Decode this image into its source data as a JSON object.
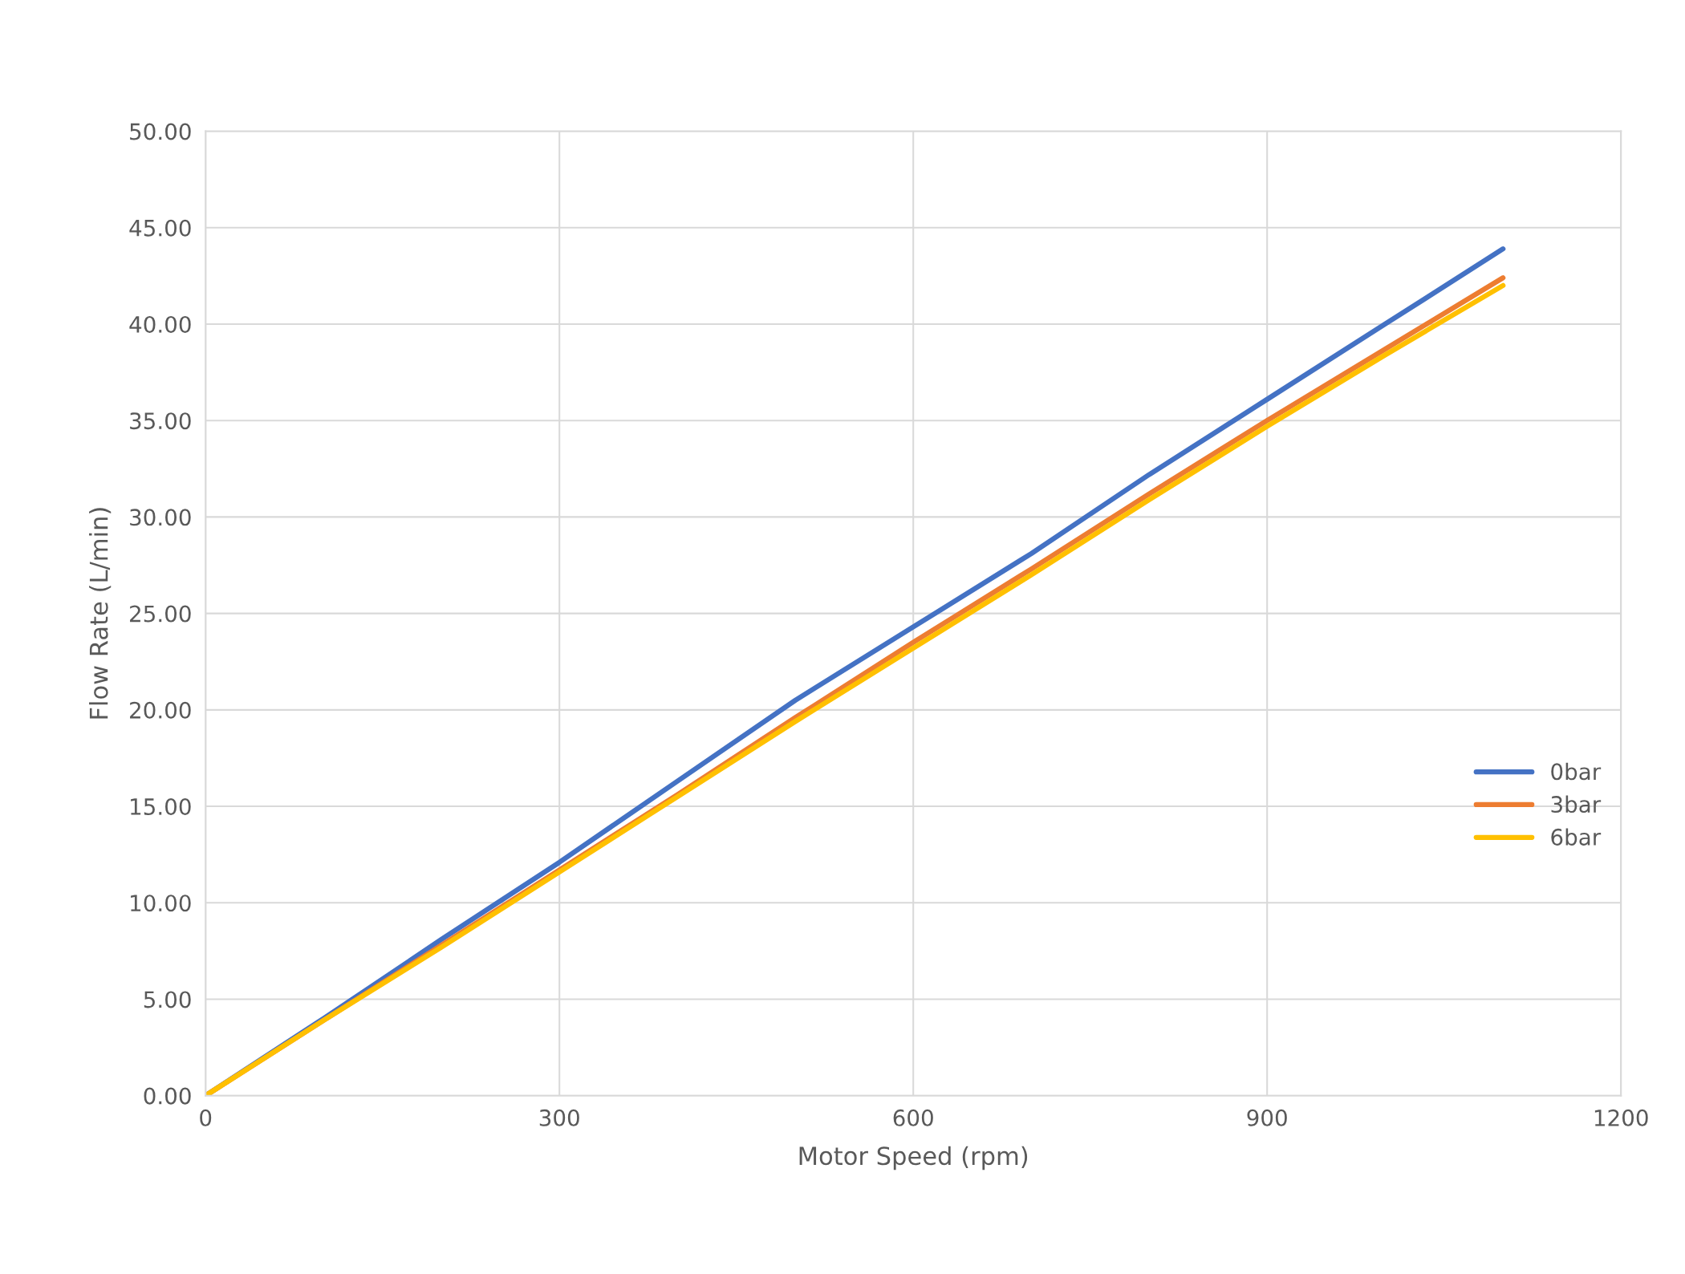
{
  "chart_data": {
    "type": "line",
    "xlabel": "Motor Speed (rpm)",
    "ylabel": "Flow Rate (L/min)",
    "x": [
      0,
      100,
      200,
      300,
      400,
      500,
      600,
      700,
      800,
      900,
      1000,
      1100
    ],
    "series": [
      {
        "name": "0bar",
        "color": "#4472c4",
        "values": [
          0,
          4.0,
          8.1,
          12.1,
          16.3,
          20.5,
          24.3,
          28.1,
          32.2,
          36.1,
          40.0,
          43.9
        ]
      },
      {
        "name": "3bar",
        "color": "#ed7d31",
        "values": [
          0,
          3.9,
          7.8,
          11.7,
          15.6,
          19.6,
          23.5,
          27.3,
          31.2,
          35.0,
          38.7,
          42.4
        ]
      },
      {
        "name": "6bar",
        "color": "#ffc000",
        "values": [
          0,
          3.9,
          7.7,
          11.6,
          15.5,
          19.4,
          23.2,
          27.0,
          30.9,
          34.7,
          38.4,
          42.0
        ]
      }
    ],
    "xlim": [
      0,
      1200
    ],
    "xticks": [
      0,
      300,
      600,
      900,
      1200
    ],
    "ylim": [
      0,
      50
    ],
    "yticks": [
      {
        "value": 0,
        "label": "0.00"
      },
      {
        "value": 5,
        "label": "5.00"
      },
      {
        "value": 10,
        "label": "10.00"
      },
      {
        "value": 15,
        "label": "15.00"
      },
      {
        "value": 20,
        "label": "20.00"
      },
      {
        "value": 25,
        "label": "25.00"
      },
      {
        "value": 30,
        "label": "30.00"
      },
      {
        "value": 35,
        "label": "35.00"
      },
      {
        "value": 40,
        "label": "40.00"
      },
      {
        "value": 45,
        "label": "45.00"
      },
      {
        "value": 50,
        "label": "50.00"
      }
    ],
    "grid": true,
    "legend": "right",
    "marker": "none",
    "line_style": "solid"
  }
}
